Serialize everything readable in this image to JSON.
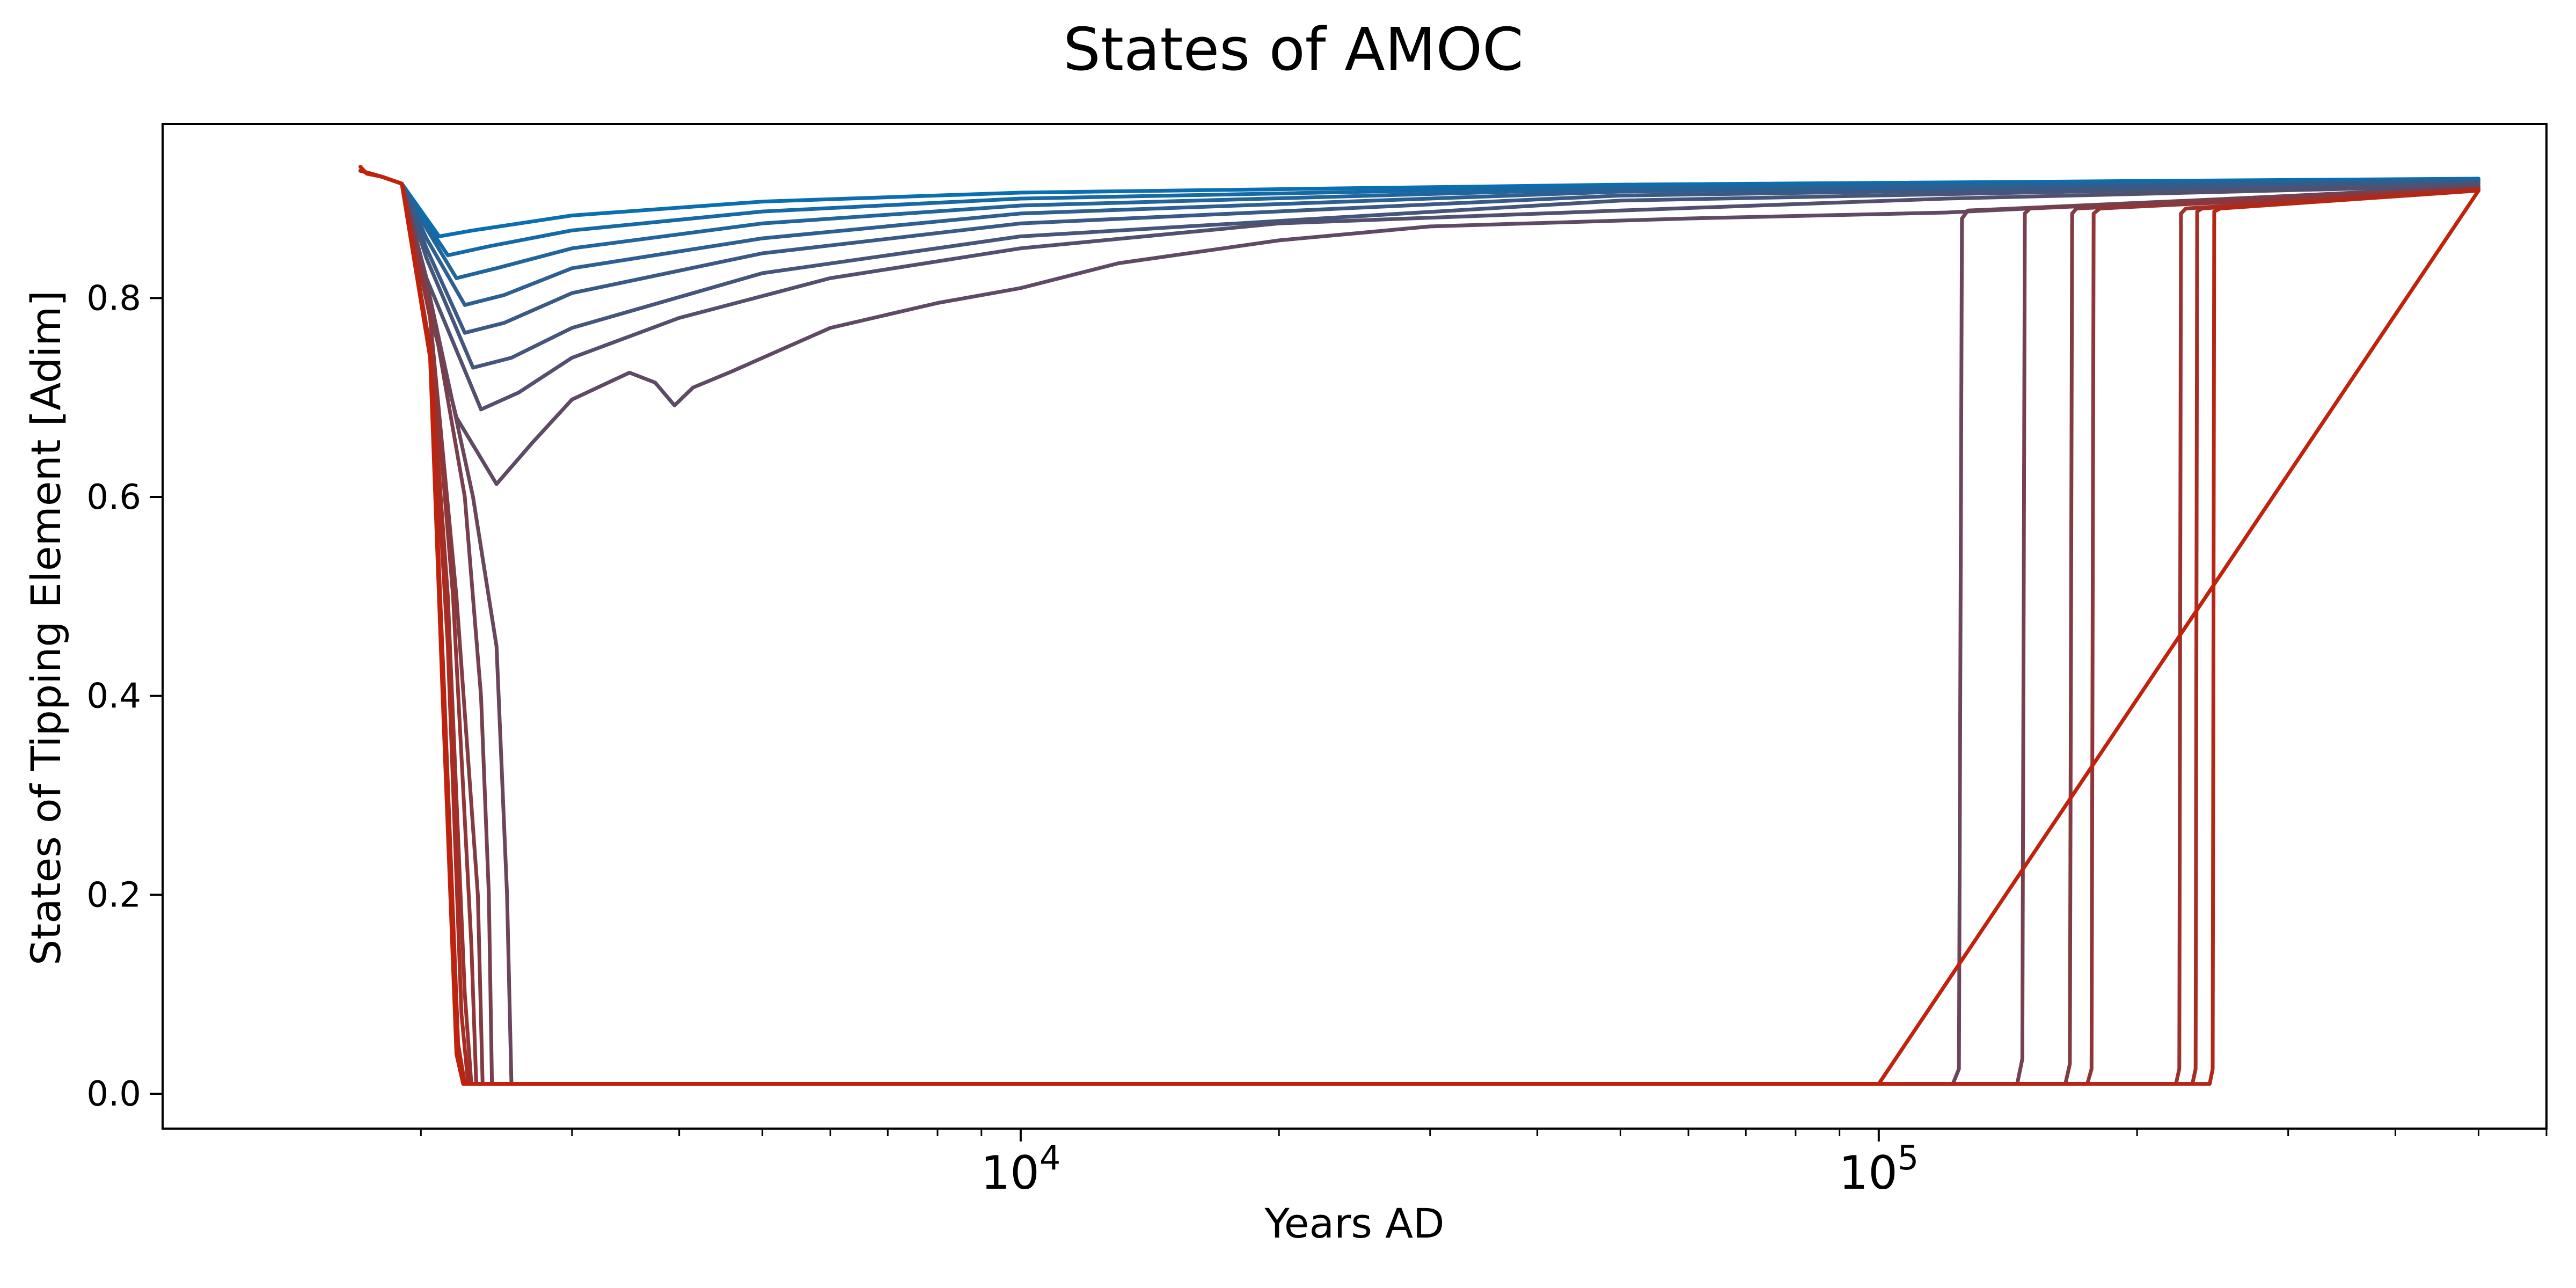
{
  "chart_data": {
    "type": "line",
    "title": "States of AMOC",
    "xlabel": "Years AD",
    "ylabel": "States of Tipping Element [Adim]",
    "xscale": "log",
    "xlim": [
      1000,
      600000
    ],
    "ylim": [
      -0.035,
      0.975
    ],
    "grid": false,
    "legend": "none",
    "x_ticks": [
      {
        "value": 10000,
        "base": "10",
        "exp": "4"
      },
      {
        "value": 100000,
        "base": "10",
        "exp": "5"
      }
    ],
    "y_ticks": [
      {
        "value": 0.0,
        "label": "0.0"
      },
      {
        "value": 0.2,
        "label": "0.2"
      },
      {
        "value": 0.4,
        "label": "0.4"
      },
      {
        "value": 0.6,
        "label": "0.6"
      },
      {
        "value": 0.8,
        "label": "0.8"
      }
    ],
    "series": [
      {
        "color": "#0a6fb0",
        "points": [
          [
            1700,
            0.928
          ],
          [
            1800,
            0.922
          ],
          [
            1900,
            0.915
          ],
          [
            2030,
            0.88
          ],
          [
            2100,
            0.862
          ],
          [
            2300,
            0.868
          ],
          [
            3000,
            0.883
          ],
          [
            5000,
            0.897
          ],
          [
            10000,
            0.906
          ],
          [
            50000,
            0.914
          ],
          [
            500000,
            0.92
          ]
        ]
      },
      {
        "color": "#156aa6",
        "points": [
          [
            1700,
            0.928
          ],
          [
            1800,
            0.922
          ],
          [
            1900,
            0.915
          ],
          [
            2030,
            0.875
          ],
          [
            2150,
            0.843
          ],
          [
            2400,
            0.852
          ],
          [
            3000,
            0.868
          ],
          [
            5000,
            0.887
          ],
          [
            10000,
            0.9
          ],
          [
            50000,
            0.912
          ],
          [
            500000,
            0.919
          ]
        ]
      },
      {
        "color": "#21659b",
        "points": [
          [
            1700,
            0.928
          ],
          [
            1800,
            0.922
          ],
          [
            1900,
            0.915
          ],
          [
            2030,
            0.87
          ],
          [
            2200,
            0.82
          ],
          [
            2450,
            0.83
          ],
          [
            3000,
            0.85
          ],
          [
            5000,
            0.875
          ],
          [
            10000,
            0.893
          ],
          [
            50000,
            0.91
          ],
          [
            500000,
            0.918
          ]
        ]
      },
      {
        "color": "#2d5f90",
        "points": [
          [
            1700,
            0.928
          ],
          [
            1800,
            0.922
          ],
          [
            1900,
            0.915
          ],
          [
            2030,
            0.86
          ],
          [
            2250,
            0.793
          ],
          [
            2500,
            0.803
          ],
          [
            3000,
            0.83
          ],
          [
            5000,
            0.86
          ],
          [
            10000,
            0.885
          ],
          [
            50000,
            0.907
          ],
          [
            500000,
            0.917
          ]
        ]
      },
      {
        "color": "#3a5a85",
        "points": [
          [
            1700,
            0.928
          ],
          [
            1800,
            0.922
          ],
          [
            1900,
            0.915
          ],
          [
            2030,
            0.85
          ],
          [
            2250,
            0.765
          ],
          [
            2500,
            0.775
          ],
          [
            3000,
            0.805
          ],
          [
            5000,
            0.845
          ],
          [
            10000,
            0.875
          ],
          [
            50000,
            0.903
          ],
          [
            500000,
            0.916
          ]
        ]
      },
      {
        "color": "#46557a",
        "points": [
          [
            1700,
            0.928
          ],
          [
            1800,
            0.922
          ],
          [
            1900,
            0.915
          ],
          [
            2030,
            0.84
          ],
          [
            2300,
            0.73
          ],
          [
            2550,
            0.74
          ],
          [
            3000,
            0.77
          ],
          [
            5000,
            0.825
          ],
          [
            10000,
            0.862
          ],
          [
            50000,
            0.898
          ],
          [
            500000,
            0.915
          ]
        ]
      },
      {
        "color": "#52506f",
        "points": [
          [
            1700,
            0.928
          ],
          [
            1800,
            0.922
          ],
          [
            1900,
            0.915
          ],
          [
            2030,
            0.82
          ],
          [
            2350,
            0.688
          ],
          [
            2600,
            0.705
          ],
          [
            3000,
            0.74
          ],
          [
            4000,
            0.78
          ],
          [
            6000,
            0.82
          ],
          [
            10000,
            0.85
          ],
          [
            20000,
            0.875
          ],
          [
            50000,
            0.888
          ],
          [
            120000,
            0.9
          ],
          [
            500000,
            0.913
          ]
        ]
      },
      {
        "color": "#5e4a64",
        "points": [
          [
            1700,
            0.928
          ],
          [
            1800,
            0.922
          ],
          [
            1900,
            0.915
          ],
          [
            2030,
            0.8
          ],
          [
            2200,
            0.68
          ],
          [
            2450,
            0.613
          ],
          [
            2700,
            0.655
          ],
          [
            3000,
            0.698
          ],
          [
            3500,
            0.725
          ],
          [
            3750,
            0.715
          ],
          [
            3950,
            0.692
          ],
          [
            4150,
            0.71
          ],
          [
            4600,
            0.726
          ],
          [
            6000,
            0.77
          ],
          [
            8000,
            0.795
          ],
          [
            10000,
            0.81
          ],
          [
            13000,
            0.835
          ],
          [
            20000,
            0.858
          ],
          [
            30000,
            0.872
          ],
          [
            60000,
            0.88
          ],
          [
            120000,
            0.886
          ],
          [
            500000,
            0.912
          ]
        ]
      },
      {
        "color": "#6b4559",
        "points": [
          [
            1700,
            0.928
          ],
          [
            1800,
            0.922
          ],
          [
            1900,
            0.915
          ],
          [
            2050,
            0.8
          ],
          [
            2300,
            0.6
          ],
          [
            2450,
            0.45
          ],
          [
            2520,
            0.2
          ],
          [
            2550,
            0.01
          ],
          [
            100000,
            0.01
          ],
          [
            122000,
            0.01
          ],
          [
            124000,
            0.025
          ],
          [
            125000,
            0.88
          ],
          [
            127000,
            0.888
          ],
          [
            500000,
            0.911
          ]
        ]
      },
      {
        "color": "#77404e",
        "points": [
          [
            1700,
            0.928
          ],
          [
            1800,
            0.922
          ],
          [
            1900,
            0.915
          ],
          [
            2050,
            0.8
          ],
          [
            2250,
            0.6
          ],
          [
            2350,
            0.4
          ],
          [
            2400,
            0.2
          ],
          [
            2420,
            0.01
          ],
          [
            100000,
            0.01
          ],
          [
            145000,
            0.01
          ],
          [
            147000,
            0.035
          ],
          [
            148000,
            0.885
          ],
          [
            150000,
            0.89
          ],
          [
            500000,
            0.91
          ]
        ]
      },
      {
        "color": "#833b43",
        "points": [
          [
            1700,
            0.928
          ],
          [
            1800,
            0.922
          ],
          [
            1900,
            0.915
          ],
          [
            2050,
            0.78
          ],
          [
            2200,
            0.5
          ],
          [
            2330,
            0.2
          ],
          [
            2360,
            0.01
          ],
          [
            100000,
            0.01
          ],
          [
            165000,
            0.01
          ],
          [
            167000,
            0.03
          ],
          [
            168000,
            0.885
          ],
          [
            170000,
            0.89
          ],
          [
            500000,
            0.91
          ]
        ]
      },
      {
        "color": "#903638",
        "points": [
          [
            1700,
            0.928
          ],
          [
            1800,
            0.922
          ],
          [
            1900,
            0.915
          ],
          [
            2050,
            0.78
          ],
          [
            2180,
            0.5
          ],
          [
            2290,
            0.15
          ],
          [
            2320,
            0.01
          ],
          [
            100000,
            0.01
          ],
          [
            175000,
            0.01
          ],
          [
            177000,
            0.025
          ],
          [
            178000,
            0.885
          ],
          [
            181000,
            0.89
          ],
          [
            500000,
            0.909
          ]
        ]
      },
      {
        "color": "#9c312d",
        "points": [
          [
            1700,
            0.928
          ],
          [
            1800,
            0.922
          ],
          [
            1900,
            0.915
          ],
          [
            2050,
            0.75
          ],
          [
            2150,
            0.5
          ],
          [
            2250,
            0.1
          ],
          [
            2290,
            0.01
          ],
          [
            100000,
            0.01
          ],
          [
            222000,
            0.01
          ],
          [
            224000,
            0.025
          ],
          [
            225000,
            0.885
          ],
          [
            228000,
            0.89
          ],
          [
            500000,
            0.909
          ]
        ]
      },
      {
        "color": "#a82c22",
        "points": [
          [
            1700,
            0.928
          ],
          [
            1800,
            0.922
          ],
          [
            1900,
            0.915
          ],
          [
            2050,
            0.75
          ],
          [
            2150,
            0.45
          ],
          [
            2230,
            0.08
          ],
          [
            2270,
            0.01
          ],
          [
            100000,
            0.01
          ],
          [
            232000,
            0.01
          ],
          [
            234000,
            0.025
          ],
          [
            235000,
            0.887
          ],
          [
            238000,
            0.89
          ],
          [
            500000,
            0.909
          ]
        ]
      },
      {
        "color": "#b42717",
        "points": [
          [
            1700,
            0.928
          ],
          [
            1800,
            0.922
          ],
          [
            1900,
            0.915
          ],
          [
            2050,
            0.74
          ],
          [
            2130,
            0.4
          ],
          [
            2210,
            0.05
          ],
          [
            2250,
            0.01
          ],
          [
            100000,
            0.01
          ],
          [
            243000,
            0.01
          ],
          [
            245000,
            0.025
          ],
          [
            246000,
            0.887
          ],
          [
            250000,
            0.89
          ],
          [
            500000,
            0.908
          ]
        ]
      },
      {
        "color": "#c1220c",
        "points": [
          [
            1700,
            0.932
          ],
          [
            1730,
            0.925
          ],
          [
            1800,
            0.922
          ],
          [
            1900,
            0.915
          ],
          [
            2050,
            0.74
          ],
          [
            2120,
            0.4
          ],
          [
            2200,
            0.04
          ],
          [
            2240,
            0.01
          ],
          [
            100000,
            0.01
          ],
          [
            500000,
            0.908
          ]
        ]
      }
    ]
  }
}
